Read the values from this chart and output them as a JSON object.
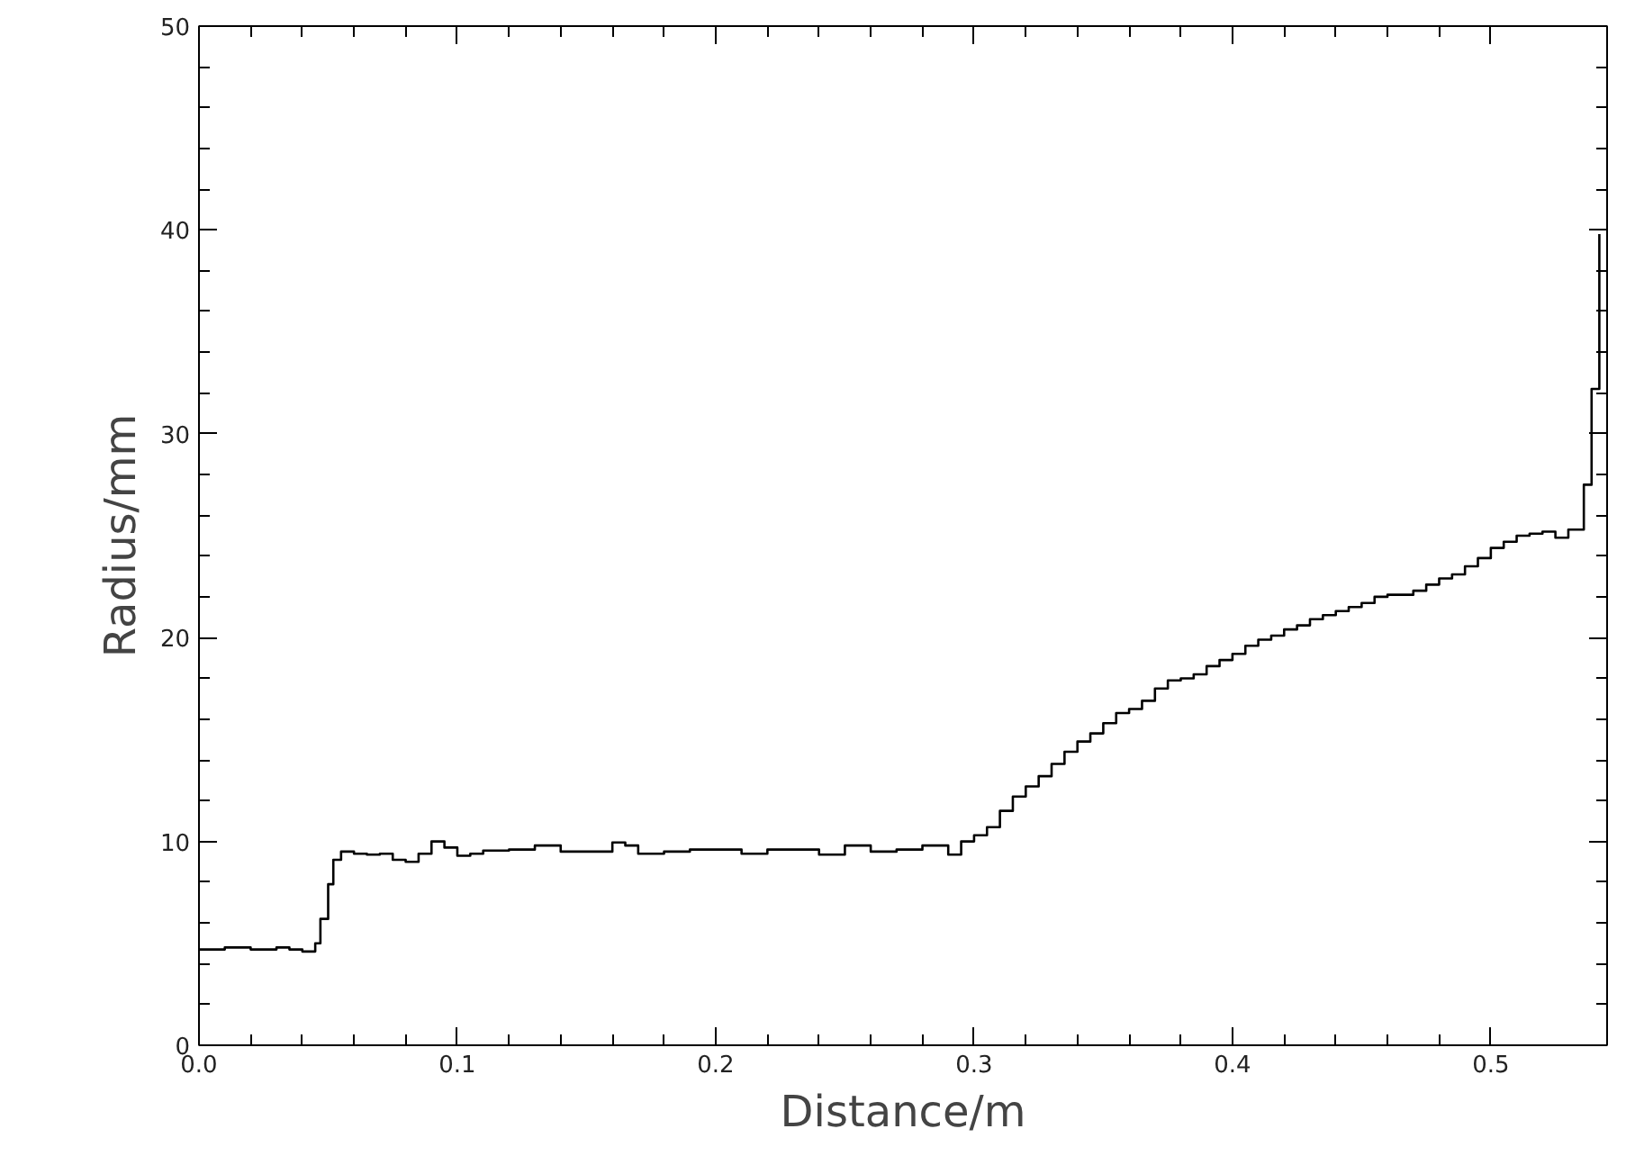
{
  "chart_data": {
    "type": "step",
    "xlabel": "Distance/m",
    "ylabel": "Radius/mm",
    "xlim": [
      0,
      0.545
    ],
    "ylim": [
      0,
      50
    ],
    "xticks": [
      {
        "value": 0,
        "label": "0.0"
      },
      0.1,
      0.2,
      0.3,
      0.4,
      0.5
    ],
    "yticks": [
      0,
      10,
      20,
      30,
      40,
      50
    ],
    "grid": false,
    "series": [
      {
        "color": "#000000",
        "x": [
          0,
          0.01,
          0.02,
          0.03,
          0.035,
          0.04,
          0.045,
          0.047,
          0.05,
          0.052,
          0.055,
          0.06,
          0.065,
          0.07,
          0.075,
          0.08,
          0.085,
          0.09,
          0.095,
          0.1,
          0.105,
          0.11,
          0.12,
          0.13,
          0.14,
          0.15,
          0.16,
          0.165,
          0.17,
          0.18,
          0.19,
          0.2,
          0.21,
          0.22,
          0.23,
          0.24,
          0.25,
          0.26,
          0.27,
          0.28,
          0.29,
          0.295,
          0.3,
          0.305,
          0.31,
          0.315,
          0.32,
          0.325,
          0.33,
          0.335,
          0.34,
          0.345,
          0.35,
          0.355,
          0.36,
          0.365,
          0.37,
          0.375,
          0.38,
          0.385,
          0.39,
          0.395,
          0.4,
          0.405,
          0.41,
          0.415,
          0.42,
          0.425,
          0.43,
          0.435,
          0.44,
          0.445,
          0.45,
          0.455,
          0.46,
          0.465,
          0.47,
          0.475,
          0.48,
          0.485,
          0.49,
          0.495,
          0.5,
          0.505,
          0.51,
          0.515,
          0.52,
          0.525,
          0.53,
          0.536,
          0.539,
          0.542
        ],
        "values": [
          4.7,
          4.8,
          4.7,
          4.8,
          4.7,
          4.6,
          5.0,
          6.2,
          7.9,
          9.1,
          9.5,
          9.4,
          9.35,
          9.4,
          9.1,
          9.0,
          9.4,
          10.0,
          9.7,
          9.3,
          9.4,
          9.55,
          9.6,
          9.8,
          9.5,
          9.5,
          9.95,
          9.8,
          9.4,
          9.5,
          9.6,
          9.6,
          9.4,
          9.6,
          9.6,
          9.35,
          9.8,
          9.5,
          9.6,
          9.8,
          9.35,
          10.0,
          10.3,
          10.7,
          11.5,
          12.2,
          12.7,
          13.2,
          13.8,
          14.4,
          14.9,
          15.3,
          15.8,
          16.3,
          16.5,
          16.9,
          17.5,
          17.9,
          18.0,
          18.2,
          18.6,
          18.9,
          19.2,
          19.6,
          19.9,
          20.1,
          20.4,
          20.6,
          20.9,
          21.1,
          21.3,
          21.5,
          21.7,
          22.0,
          22.1,
          22.1,
          22.3,
          22.6,
          22.9,
          23.1,
          23.5,
          23.9,
          24.4,
          24.7,
          25.0,
          25.1,
          25.2,
          24.9,
          25.3,
          27.5,
          32.2,
          39.8
        ]
      }
    ]
  }
}
